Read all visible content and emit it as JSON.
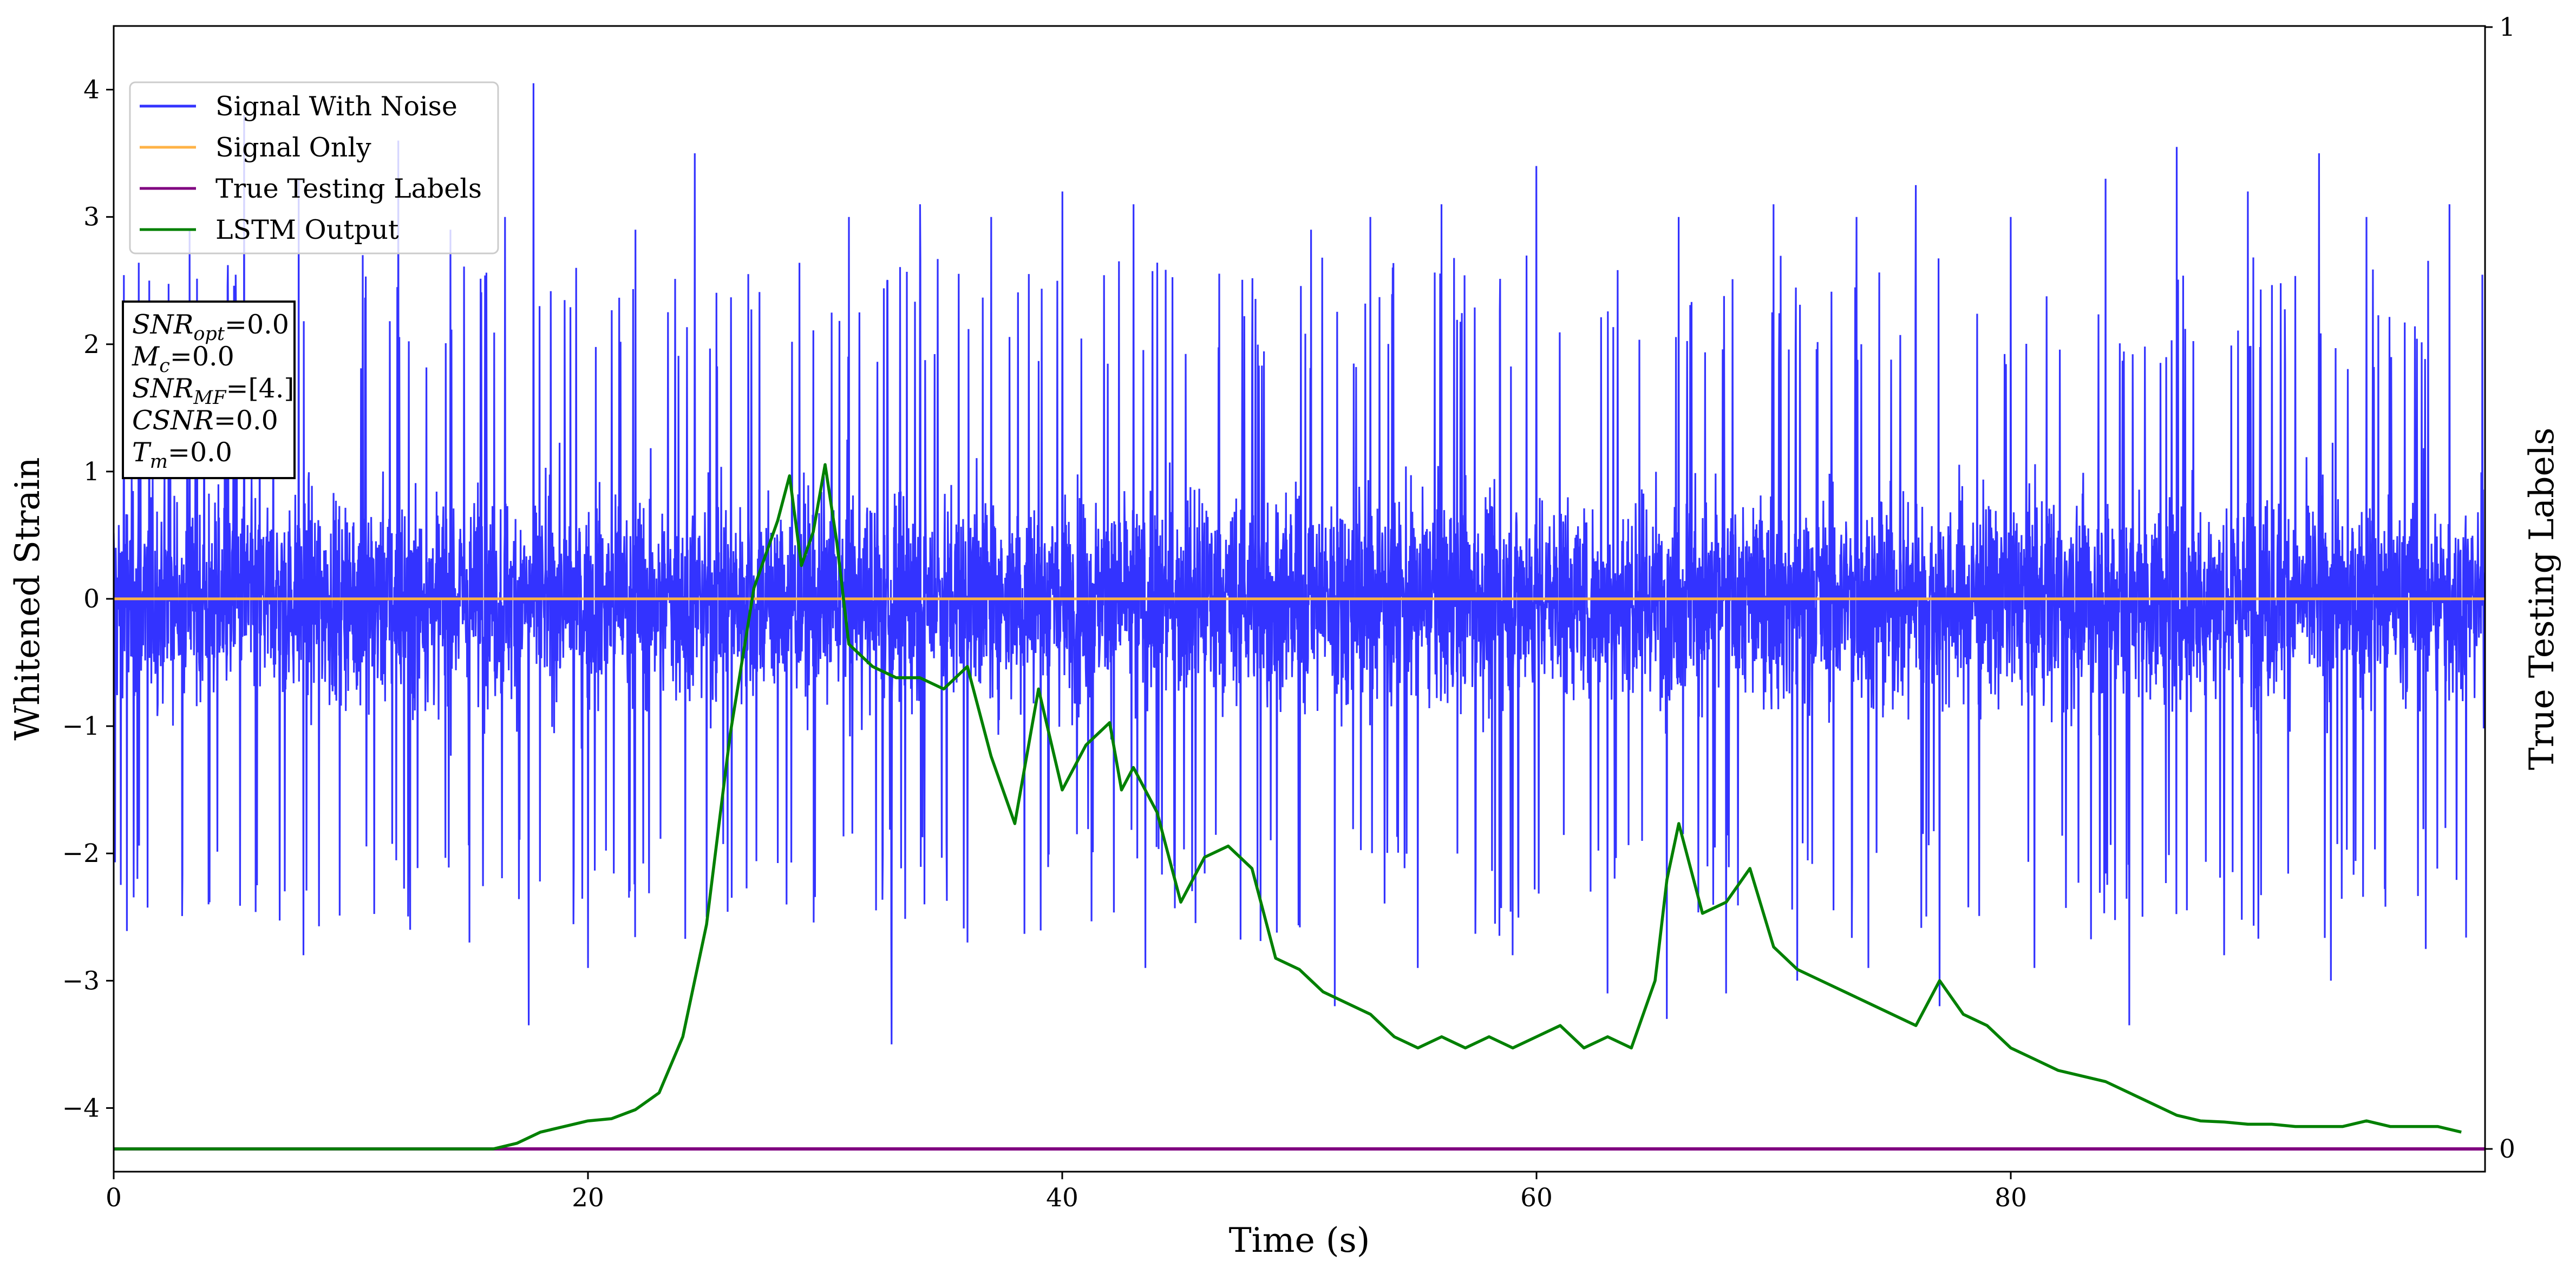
{
  "chart_data": {
    "type": "line",
    "xlabel": "Time (s)",
    "ylabel": "Whitened Strain",
    "y2label": "True Testing Labels",
    "xlim": [
      0,
      100
    ],
    "ylim": [
      -4.5,
      4.5
    ],
    "y2lim": [
      0,
      1
    ],
    "x_ticks": [
      0,
      20,
      40,
      60,
      80
    ],
    "y_ticks": [
      -4,
      -3,
      -2,
      -1,
      0,
      1,
      2,
      3,
      4
    ],
    "y2_ticks": [
      0,
      1
    ],
    "grid": false,
    "legend_position": "top-left",
    "colors": {
      "signal_with_noise": "#3333ff",
      "signal_only": "#ffb347",
      "true_labels": "#800080",
      "lstm": "#008000"
    },
    "legend": [
      {
        "label": "Signal With Noise",
        "color": "#3333ff"
      },
      {
        "label": "Signal Only",
        "color": "#ffb347"
      },
      {
        "label": "True Testing Labels",
        "color": "#800080"
      },
      {
        "label": "LSTM Output",
        "color": "#008000"
      }
    ],
    "annotation": [
      {
        "base": "SNR",
        "sub": "opt",
        "value": "=0.0"
      },
      {
        "base": "M",
        "sub": "c",
        "value": "=0.0"
      },
      {
        "base": "SNR",
        "sub": "MF",
        "value": "=[4.]"
      },
      {
        "base": "CSNR",
        "sub": "",
        "value": "=0.0"
      },
      {
        "base": "T",
        "sub": "m",
        "value": "=0.0"
      }
    ],
    "series": [
      {
        "name": "Signal With Noise",
        "axis": "left",
        "style": "dense noise band",
        "typical_range": [
          -1.5,
          1.5
        ],
        "peak_max": 4.05,
        "peak_min": -3.5,
        "spikes": [
          {
            "x": 1.5,
            "y": 2.5
          },
          {
            "x": 3.2,
            "y": 2.9
          },
          {
            "x": 5.5,
            "y": 3.8
          },
          {
            "x": 7.8,
            "y": 3.3
          },
          {
            "x": 10.5,
            "y": 2.7
          },
          {
            "x": 12.0,
            "y": 3.6
          },
          {
            "x": 14.2,
            "y": 2.9
          },
          {
            "x": 16.5,
            "y": 3.0
          },
          {
            "x": 17.7,
            "y": 4.05
          },
          {
            "x": 19.5,
            "y": 2.6
          },
          {
            "x": 22.0,
            "y": 2.9
          },
          {
            "x": 24.5,
            "y": 3.5
          },
          {
            "x": 28.0,
            "y": 2.7
          },
          {
            "x": 31.0,
            "y": 3.0
          },
          {
            "x": 34.0,
            "y": 3.1
          },
          {
            "x": 37.0,
            "y": 3.0
          },
          {
            "x": 40.0,
            "y": 3.2
          },
          {
            "x": 43.0,
            "y": 3.1
          },
          {
            "x": 46.0,
            "y": 3.0
          },
          {
            "x": 50.5,
            "y": 2.9
          },
          {
            "x": 53.0,
            "y": 3.0
          },
          {
            "x": 56.0,
            "y": 3.1
          },
          {
            "x": 60.0,
            "y": 3.4
          },
          {
            "x": 63.0,
            "y": 3.1
          },
          {
            "x": 66.0,
            "y": 3.0
          },
          {
            "x": 70.0,
            "y": 3.1
          },
          {
            "x": 73.5,
            "y": 3.0
          },
          {
            "x": 76.0,
            "y": 3.25
          },
          {
            "x": 80.0,
            "y": 3.0
          },
          {
            "x": 84.0,
            "y": 3.3
          },
          {
            "x": 87.0,
            "y": 3.55
          },
          {
            "x": 90.0,
            "y": 3.2
          },
          {
            "x": 93.0,
            "y": 3.5
          },
          {
            "x": 95.0,
            "y": 3.0
          },
          {
            "x": 98.5,
            "y": 3.1
          }
        ],
        "dips": [
          {
            "x": 1.0,
            "y": -2.2
          },
          {
            "x": 4.0,
            "y": -2.4
          },
          {
            "x": 8.0,
            "y": -2.8
          },
          {
            "x": 12.5,
            "y": -2.6
          },
          {
            "x": 15.0,
            "y": -2.7
          },
          {
            "x": 17.5,
            "y": -3.35
          },
          {
            "x": 20.0,
            "y": -2.9
          },
          {
            "x": 25.0,
            "y": -2.5
          },
          {
            "x": 29.5,
            "y": -3.0
          },
          {
            "x": 32.8,
            "y": -3.5
          },
          {
            "x": 36.0,
            "y": -2.7
          },
          {
            "x": 40.8,
            "y": -3.3
          },
          {
            "x": 43.5,
            "y": -2.9
          },
          {
            "x": 48.5,
            "y": -3.35
          },
          {
            "x": 51.5,
            "y": -3.2
          },
          {
            "x": 55.0,
            "y": -2.9
          },
          {
            "x": 59.0,
            "y": -2.8
          },
          {
            "x": 63.0,
            "y": -3.1
          },
          {
            "x": 65.5,
            "y": -3.3
          },
          {
            "x": 68.0,
            "y": -3.1
          },
          {
            "x": 71.0,
            "y": -3.0
          },
          {
            "x": 74.0,
            "y": -2.9
          },
          {
            "x": 77.0,
            "y": -3.2
          },
          {
            "x": 81.0,
            "y": -2.9
          },
          {
            "x": 85.0,
            "y": -3.35
          },
          {
            "x": 89.0,
            "y": -2.8
          },
          {
            "x": 93.5,
            "y": -3.0
          },
          {
            "x": 97.5,
            "y": -2.75
          }
        ]
      },
      {
        "name": "Signal Only",
        "axis": "left",
        "x": [
          0,
          100
        ],
        "y": [
          0,
          0
        ]
      },
      {
        "name": "True Testing Labels",
        "axis": "right",
        "x": [
          0,
          100
        ],
        "y": [
          0,
          0
        ]
      },
      {
        "name": "LSTM Output",
        "axis": "right",
        "x": [
          0,
          10,
          16,
          17,
          18,
          19,
          20,
          21,
          22,
          23,
          24,
          25,
          26,
          27,
          28,
          28.5,
          29,
          29.5,
          30,
          30.5,
          31,
          32,
          33,
          34,
          35,
          36,
          37,
          38,
          39,
          40,
          41,
          42,
          42.5,
          43,
          44,
          45,
          46,
          47,
          48,
          49,
          50,
          51,
          52,
          53,
          54,
          55,
          56,
          57,
          58,
          59,
          60,
          61,
          62,
          63,
          64,
          65,
          65.5,
          66,
          67,
          68,
          69,
          70,
          71,
          72,
          73,
          74,
          75,
          76,
          77,
          78,
          79,
          80,
          81,
          82,
          83,
          84,
          85,
          86,
          87,
          88,
          89,
          90,
          91,
          92,
          93,
          94,
          95,
          96,
          97,
          98,
          99
        ],
        "y": [
          0,
          0,
          0,
          0.005,
          0.015,
          0.02,
          0.025,
          0.027,
          0.035,
          0.05,
          0.1,
          0.2,
          0.37,
          0.5,
          0.56,
          0.6,
          0.52,
          0.55,
          0.61,
          0.54,
          0.45,
          0.43,
          0.42,
          0.42,
          0.41,
          0.43,
          0.35,
          0.29,
          0.41,
          0.32,
          0.36,
          0.38,
          0.32,
          0.34,
          0.3,
          0.22,
          0.26,
          0.27,
          0.25,
          0.17,
          0.16,
          0.14,
          0.13,
          0.12,
          0.1,
          0.09,
          0.1,
          0.09,
          0.1,
          0.09,
          0.1,
          0.11,
          0.09,
          0.1,
          0.09,
          0.15,
          0.24,
          0.29,
          0.21,
          0.22,
          0.25,
          0.18,
          0.16,
          0.15,
          0.14,
          0.13,
          0.12,
          0.11,
          0.15,
          0.12,
          0.11,
          0.09,
          0.08,
          0.07,
          0.065,
          0.06,
          0.05,
          0.04,
          0.03,
          0.025,
          0.024,
          0.022,
          0.022,
          0.02,
          0.02,
          0.02,
          0.025,
          0.02,
          0.02,
          0.02,
          0.015
        ]
      }
    ]
  }
}
